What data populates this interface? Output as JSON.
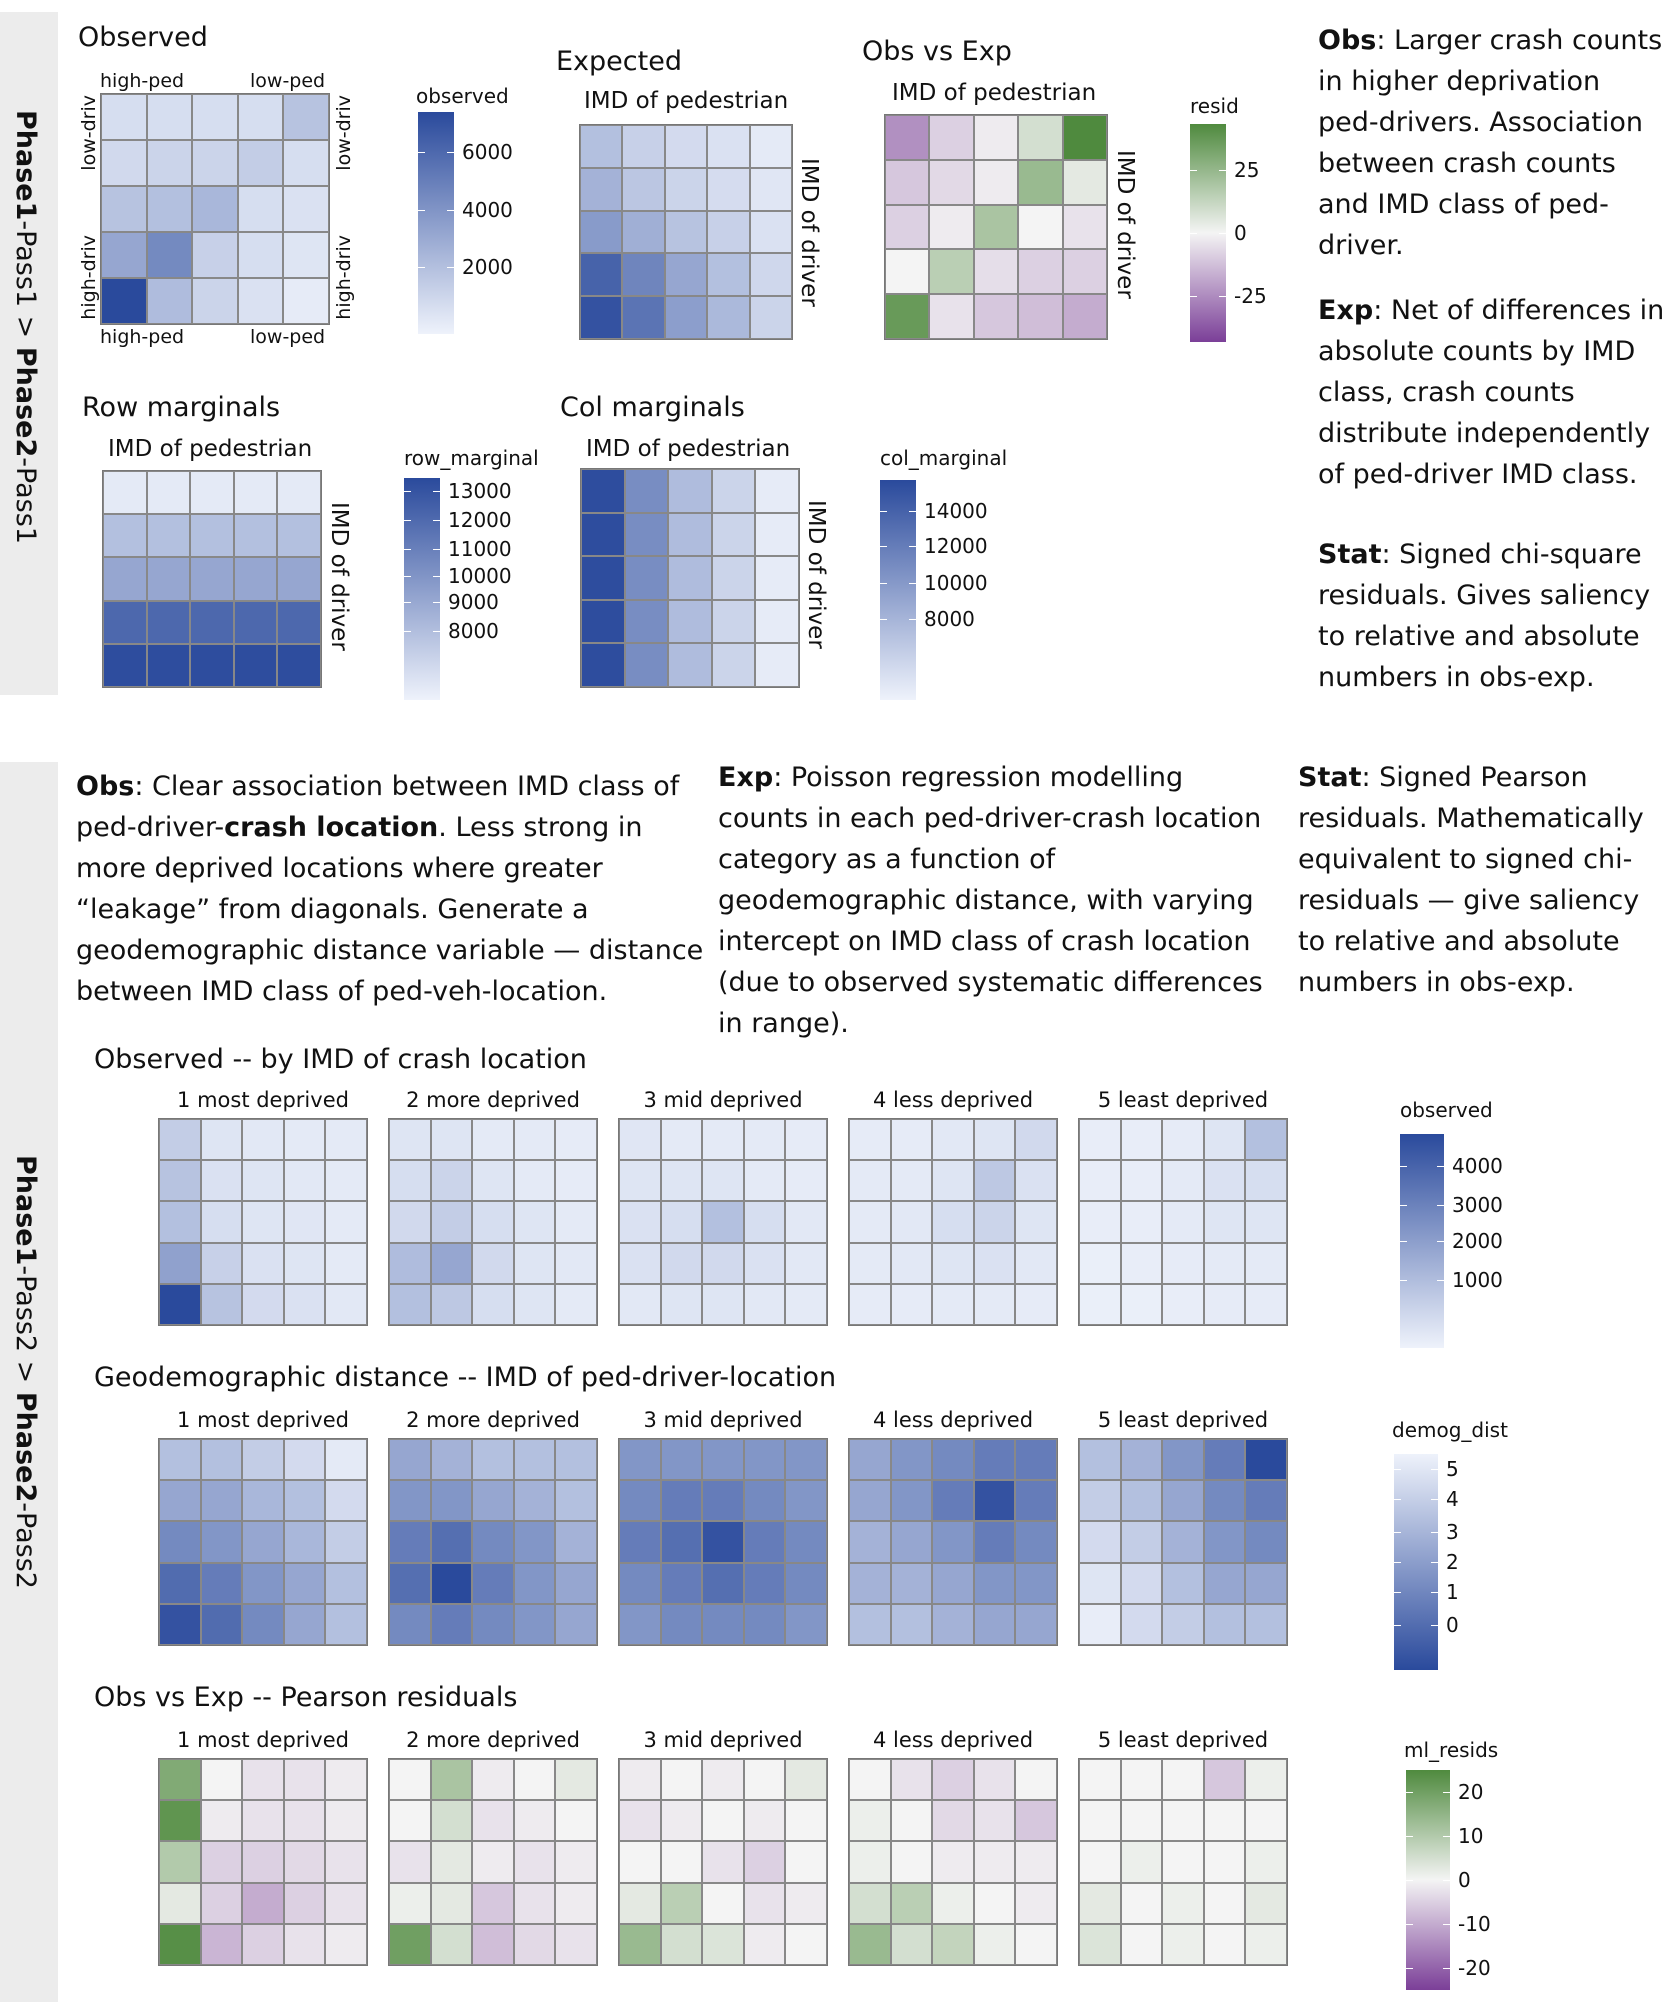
{
  "colors": {
    "blue_low": "#eef2fb",
    "blue_high": "#2a4a9c",
    "green_high": "#4f8a3e",
    "purple_low": "#7b3f98",
    "neutral": "#f4f4f4",
    "band": "#ececec"
  },
  "sections": {
    "section1_label": {
      "bold1": "Phase1",
      "rest1": "-Pass1 > ",
      "bold2": "Phase2",
      "rest2": "-Pass1"
    },
    "section2_label": {
      "bold1": "Phase1",
      "rest1": "-Pass2 > ",
      "bold2": "Phase2",
      "rest2": "-Pass2"
    }
  },
  "panel1": {
    "observed_title": "Observed",
    "expected_title": "Expected",
    "obsvexp_title": "Obs vs Exp",
    "row_marginals_title": "Row marginals",
    "col_marginals_title": "Col marginals",
    "axis_ped": "IMD of pedestrian",
    "axis_driver": "IMD of driver",
    "corner_high_ped": "high-ped",
    "corner_low_ped": "low-ped",
    "corner_low_driv": "low-driv",
    "corner_high_driv": "high-driv",
    "legend_observed": {
      "title": "observed",
      "ticks": [
        "6000",
        "4000",
        "2000"
      ]
    },
    "legend_resid": {
      "title": "resid",
      "ticks": [
        "25",
        "0",
        "-25"
      ]
    },
    "legend_row": {
      "title": "row_marginal",
      "ticks": [
        "13000",
        "12000",
        "11000",
        "10000",
        "9000",
        "8000"
      ]
    },
    "legend_col": {
      "title": "col_marginal",
      "ticks": [
        "14000",
        "12000",
        "10000",
        "8000"
      ]
    }
  },
  "notes1": {
    "obs_label": "Obs",
    "obs_text": ": Larger crash counts in higher deprivation ped-drivers. Association between crash counts and IMD class of ped-driver.",
    "exp_label": "Exp",
    "exp_text": ": Net of differences in absolute counts by IMD class, crash counts distribute independently of ped-driver IMD class.",
    "stat_label": "Stat",
    "stat_text": ": Signed chi-square residuals. Gives saliency to relative and absolute numbers in obs-exp."
  },
  "notes2": {
    "obs_label": "Obs",
    "obs_text1": ": Clear association between IMD class of ped-driver-",
    "obs_bold": "crash location",
    "obs_text2": ". Less strong in more deprived locations where greater “leakage” from diagonals. Generate a geodemographic distance variable — distance between IMD class of ped-veh-location.",
    "exp_label": "Exp",
    "exp_text": ": Poisson regression modelling counts in each ped-driver-crash location category as a function of geodemographic distance, with varying intercept on IMD class of crash location (due to observed systematic differences in range).",
    "stat_label": "Stat",
    "stat_text": ": Signed Pearson residuals. Mathematically equivalent to signed chi-residuals — give saliency to relative and absolute numbers in obs-exp."
  },
  "panel2": {
    "row1_title": "Observed -- by IMD of crash location",
    "row2_title": "Geodemographic distance -- IMD of ped-driver-location",
    "row3_title": "Obs vs Exp -- Pearson residuals",
    "facets": [
      "1 most deprived",
      "2 more deprived",
      "3 mid deprived",
      "4 less deprived",
      "5 least deprived"
    ],
    "legend_observed": {
      "title": "observed",
      "ticks": [
        "4000",
        "3000",
        "2000",
        "1000"
      ]
    },
    "legend_demog": {
      "title": "demog_dist",
      "ticks": [
        "5",
        "4",
        "3",
        "2",
        "1",
        "0"
      ]
    },
    "legend_resids": {
      "title": "ml_resids",
      "ticks": [
        "20",
        "10",
        "0",
        "-10",
        "-20"
      ]
    }
  },
  "chart_data": [
    {
      "type": "heatmap",
      "title": "Observed",
      "scale": "sequential-blue",
      "values": [
        [
          0.12,
          0.12,
          0.12,
          0.12,
          0.28
        ],
        [
          0.15,
          0.18,
          0.18,
          0.22,
          0.12
        ],
        [
          0.28,
          0.3,
          0.35,
          0.12,
          0.1
        ],
        [
          0.45,
          0.62,
          0.2,
          0.12,
          0.08
        ],
        [
          1.0,
          0.32,
          0.18,
          0.1,
          0.04
        ]
      ]
    },
    {
      "type": "heatmap",
      "title": "Expected",
      "xlabel": "IMD of pedestrian",
      "ylabel": "IMD of driver",
      "scale": "sequential-blue",
      "values": [
        [
          0.3,
          0.2,
          0.14,
          0.1,
          0.05
        ],
        [
          0.38,
          0.26,
          0.18,
          0.13,
          0.07
        ],
        [
          0.52,
          0.4,
          0.28,
          0.2,
          0.1
        ],
        [
          0.85,
          0.65,
          0.45,
          0.3,
          0.16
        ],
        [
          0.95,
          0.75,
          0.5,
          0.34,
          0.18
        ]
      ]
    },
    {
      "type": "heatmap",
      "title": "Obs vs Exp",
      "xlabel": "IMD of pedestrian",
      "ylabel": "IMD of driver",
      "scale": "diverging",
      "values": [
        [
          -0.55,
          -0.2,
          -0.05,
          0.2,
          1.0
        ],
        [
          -0.25,
          -0.15,
          -0.05,
          0.55,
          0.1
        ],
        [
          -0.2,
          -0.05,
          0.45,
          0.0,
          -0.1
        ],
        [
          0.0,
          0.35,
          -0.12,
          -0.2,
          -0.2
        ],
        [
          0.85,
          -0.1,
          -0.25,
          -0.3,
          -0.4
        ]
      ]
    },
    {
      "type": "heatmap",
      "title": "Row marginals",
      "xlabel": "IMD of pedestrian",
      "ylabel": "IMD of driver",
      "scale": "sequential-blue",
      "values": [
        [
          0.05,
          0.05,
          0.05,
          0.05,
          0.05
        ],
        [
          0.3,
          0.3,
          0.3,
          0.3,
          0.3
        ],
        [
          0.45,
          0.45,
          0.45,
          0.45,
          0.45
        ],
        [
          0.82,
          0.82,
          0.82,
          0.82,
          0.82
        ],
        [
          0.98,
          0.98,
          0.98,
          0.98,
          0.98
        ]
      ]
    },
    {
      "type": "heatmap",
      "title": "Col marginals",
      "xlabel": "IMD of pedestrian",
      "ylabel": "IMD of driver",
      "scale": "sequential-blue",
      "values": [
        [
          0.98,
          0.6,
          0.32,
          0.18,
          0.04
        ],
        [
          0.98,
          0.6,
          0.32,
          0.18,
          0.04
        ],
        [
          0.98,
          0.6,
          0.32,
          0.18,
          0.04
        ],
        [
          0.98,
          0.6,
          0.32,
          0.18,
          0.04
        ],
        [
          0.98,
          0.6,
          0.32,
          0.18,
          0.04
        ]
      ]
    },
    {
      "type": "heatmap",
      "title": "Observed -- by IMD of crash location",
      "scale": "sequential-blue",
      "facets": [
        [
          [
            0.22,
            0.08,
            0.06,
            0.05,
            0.05
          ],
          [
            0.28,
            0.1,
            0.08,
            0.06,
            0.05
          ],
          [
            0.3,
            0.12,
            0.08,
            0.07,
            0.05
          ],
          [
            0.48,
            0.2,
            0.1,
            0.08,
            0.05
          ],
          [
            1.0,
            0.28,
            0.14,
            0.1,
            0.06
          ]
        ],
        [
          [
            0.08,
            0.08,
            0.05,
            0.05,
            0.04
          ],
          [
            0.12,
            0.18,
            0.08,
            0.05,
            0.04
          ],
          [
            0.15,
            0.22,
            0.12,
            0.08,
            0.05
          ],
          [
            0.32,
            0.45,
            0.15,
            0.08,
            0.06
          ],
          [
            0.3,
            0.25,
            0.12,
            0.08,
            0.05
          ]
        ],
        [
          [
            0.07,
            0.05,
            0.05,
            0.05,
            0.04
          ],
          [
            0.08,
            0.08,
            0.08,
            0.05,
            0.04
          ],
          [
            0.1,
            0.12,
            0.3,
            0.12,
            0.06
          ],
          [
            0.1,
            0.15,
            0.15,
            0.1,
            0.06
          ],
          [
            0.06,
            0.08,
            0.08,
            0.06,
            0.05
          ]
        ],
        [
          [
            0.04,
            0.04,
            0.06,
            0.08,
            0.15
          ],
          [
            0.05,
            0.05,
            0.08,
            0.25,
            0.1
          ],
          [
            0.05,
            0.06,
            0.12,
            0.18,
            0.08
          ],
          [
            0.05,
            0.06,
            0.08,
            0.1,
            0.06
          ],
          [
            0.04,
            0.04,
            0.05,
            0.05,
            0.04
          ]
        ],
        [
          [
            0.03,
            0.03,
            0.04,
            0.08,
            0.3
          ],
          [
            0.03,
            0.03,
            0.05,
            0.1,
            0.12
          ],
          [
            0.03,
            0.03,
            0.05,
            0.08,
            0.08
          ],
          [
            0.02,
            0.03,
            0.04,
            0.05,
            0.05
          ],
          [
            0.02,
            0.02,
            0.03,
            0.04,
            0.04
          ]
        ]
      ]
    },
    {
      "type": "heatmap",
      "title": "Geodemographic distance -- IMD of ped-driver-location",
      "scale": "sequential-blue-reversed",
      "facets": [
        [
          [
            0.3,
            0.3,
            0.22,
            0.14,
            0.05
          ],
          [
            0.45,
            0.45,
            0.35,
            0.3,
            0.14
          ],
          [
            0.62,
            0.55,
            0.45,
            0.35,
            0.22
          ],
          [
            0.8,
            0.7,
            0.55,
            0.45,
            0.3
          ],
          [
            0.95,
            0.8,
            0.62,
            0.45,
            0.3
          ]
        ],
        [
          [
            0.45,
            0.38,
            0.3,
            0.3,
            0.3
          ],
          [
            0.55,
            0.55,
            0.45,
            0.38,
            0.3
          ],
          [
            0.7,
            0.78,
            0.62,
            0.55,
            0.38
          ],
          [
            0.78,
            1.0,
            0.7,
            0.55,
            0.45
          ],
          [
            0.62,
            0.7,
            0.62,
            0.55,
            0.45
          ]
        ],
        [
          [
            0.55,
            0.55,
            0.55,
            0.55,
            0.55
          ],
          [
            0.62,
            0.7,
            0.7,
            0.62,
            0.55
          ],
          [
            0.7,
            0.78,
            0.95,
            0.7,
            0.62
          ],
          [
            0.62,
            0.7,
            0.78,
            0.7,
            0.62
          ],
          [
            0.55,
            0.62,
            0.62,
            0.62,
            0.55
          ]
        ],
        [
          [
            0.45,
            0.55,
            0.62,
            0.7,
            0.7
          ],
          [
            0.45,
            0.55,
            0.7,
            0.95,
            0.7
          ],
          [
            0.38,
            0.45,
            0.55,
            0.7,
            0.62
          ],
          [
            0.38,
            0.38,
            0.45,
            0.55,
            0.55
          ],
          [
            0.3,
            0.3,
            0.38,
            0.45,
            0.45
          ]
        ],
        [
          [
            0.3,
            0.38,
            0.55,
            0.7,
            1.0
          ],
          [
            0.22,
            0.3,
            0.45,
            0.62,
            0.7
          ],
          [
            0.14,
            0.22,
            0.38,
            0.55,
            0.62
          ],
          [
            0.08,
            0.14,
            0.3,
            0.45,
            0.45
          ],
          [
            0.03,
            0.14,
            0.22,
            0.3,
            0.3
          ]
        ]
      ]
    },
    {
      "type": "heatmap",
      "title": "Obs vs Exp -- Pearson residuals",
      "scale": "diverging",
      "facets": [
        [
          [
            0.7,
            0.0,
            -0.1,
            -0.1,
            -0.05
          ],
          [
            0.9,
            -0.05,
            -0.1,
            -0.1,
            -0.05
          ],
          [
            0.4,
            -0.2,
            -0.2,
            -0.15,
            -0.1
          ],
          [
            0.1,
            -0.2,
            -0.4,
            -0.2,
            -0.1
          ],
          [
            0.95,
            -0.35,
            -0.2,
            -0.1,
            -0.05
          ]
        ],
        [
          [
            0.0,
            0.45,
            -0.05,
            0.0,
            0.1
          ],
          [
            0.0,
            0.2,
            -0.1,
            -0.05,
            0.0
          ],
          [
            -0.1,
            0.1,
            -0.05,
            -0.1,
            -0.05
          ],
          [
            0.05,
            0.1,
            -0.25,
            -0.1,
            -0.05
          ],
          [
            0.8,
            0.2,
            -0.3,
            -0.15,
            -0.1
          ]
        ],
        [
          [
            -0.05,
            0.0,
            -0.05,
            0.0,
            0.1
          ],
          [
            -0.1,
            -0.05,
            0.0,
            -0.05,
            0.0
          ],
          [
            0.0,
            0.0,
            -0.1,
            -0.2,
            0.0
          ],
          [
            0.1,
            0.35,
            0.0,
            -0.1,
            -0.05
          ],
          [
            0.55,
            0.2,
            0.15,
            -0.05,
            0.0
          ]
        ],
        [
          [
            0.0,
            -0.1,
            -0.2,
            -0.1,
            0.0
          ],
          [
            0.05,
            0.0,
            -0.15,
            -0.1,
            -0.25
          ],
          [
            0.05,
            0.0,
            -0.05,
            -0.05,
            -0.05
          ],
          [
            0.2,
            0.35,
            0.05,
            0.0,
            -0.05
          ],
          [
            0.55,
            0.2,
            0.3,
            0.05,
            0.0
          ]
        ],
        [
          [
            0.0,
            0.0,
            0.0,
            -0.25,
            0.05
          ],
          [
            0.0,
            0.0,
            0.0,
            0.0,
            0.0
          ],
          [
            0.0,
            0.05,
            0.0,
            0.0,
            0.05
          ],
          [
            0.1,
            0.0,
            0.05,
            0.0,
            0.1
          ],
          [
            0.15,
            0.0,
            0.05,
            0.0,
            0.05
          ]
        ]
      ]
    }
  ]
}
